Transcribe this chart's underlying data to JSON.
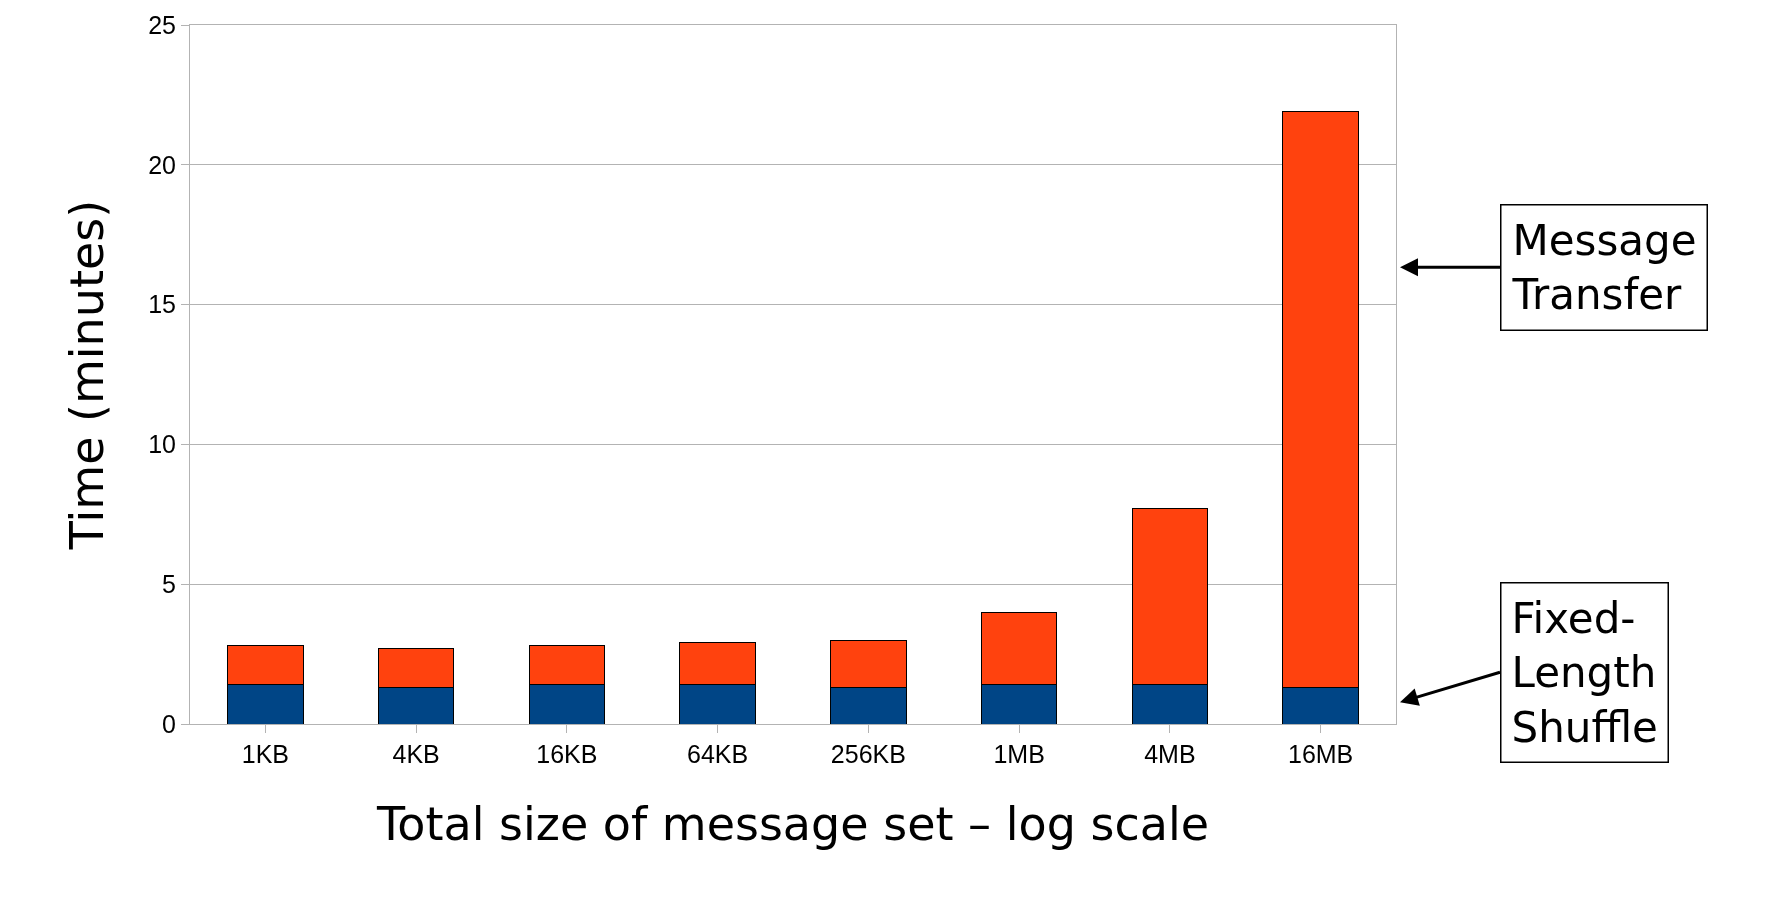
{
  "chart_data": {
    "type": "bar",
    "stacked": true,
    "xlabel": "Total size of message set – log scale",
    "ylabel": "Time (minutes)",
    "categories": [
      "1KB",
      "4KB",
      "16KB",
      "64KB",
      "256KB",
      "1MB",
      "4MB",
      "16MB"
    ],
    "series": [
      {
        "name": "Fixed-Length Shuffle",
        "color": "#004586",
        "values": [
          1.4,
          1.3,
          1.4,
          1.4,
          1.3,
          1.4,
          1.4,
          1.3
        ]
      },
      {
        "name": "Message Transfer",
        "color": "#ff420e",
        "values": [
          1.4,
          1.4,
          1.4,
          1.5,
          1.7,
          2.6,
          6.3,
          20.6
        ]
      }
    ],
    "ylim": [
      0,
      25
    ],
    "yticks": [
      0,
      5,
      10,
      15,
      20,
      25
    ],
    "grid": "y",
    "legend": "right"
  }
}
